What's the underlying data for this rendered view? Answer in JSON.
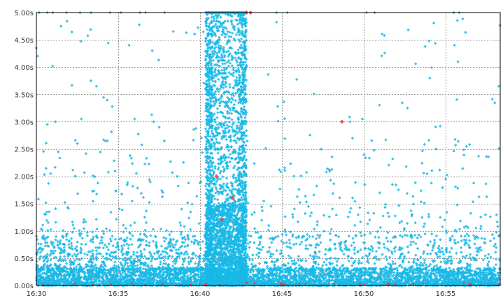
{
  "colors": {
    "background": "#ffffff",
    "plot_border": "#000000",
    "grid": "#999999",
    "response_point": "#19b8e6",
    "error_point": "#ff3333"
  },
  "chart_data": {
    "type": "scatter",
    "title": "",
    "xlabel": "",
    "ylabel": "",
    "grid": true,
    "legend": "none",
    "xlim": [
      "16:30",
      "16:58:20"
    ],
    "ylim": [
      0,
      5
    ],
    "x_ticks": [
      "16:30",
      "16:35",
      "16:40",
      "16:45",
      "16:50",
      "16:55"
    ],
    "y_ticks": [
      "0.00s",
      "0.50s",
      "1.00s",
      "1.50s",
      "2.00s",
      "2.50s",
      "3.00s",
      "3.50s",
      "4.00s",
      "4.50s",
      "5.00s"
    ],
    "series": [
      {
        "color": "#19b8e6",
        "description_points": [
          [
            "16:30:00",
            4.35
          ],
          [
            "16:30:10",
            0.3
          ],
          [
            "16:30:40",
            2.95
          ],
          [
            "16:31:10",
            3.0
          ],
          [
            "16:31:30",
            4.75
          ],
          [
            "16:32:30",
            2.6
          ],
          [
            "16:32:45",
            3.05
          ],
          [
            "16:33:20",
            3.75
          ],
          [
            "16:33:40",
            3.65
          ],
          [
            "16:34:20",
            2.65
          ],
          [
            "16:35:40",
            4.4
          ],
          [
            "16:36:00",
            3.05
          ],
          [
            "16:37:10",
            3.0
          ],
          [
            "16:37:30",
            2.9
          ],
          [
            "16:41:20",
            1.7
          ],
          [
            "16:41:45",
            1.6
          ],
          [
            "16:43:10",
            1.3
          ],
          [
            "16:44:20",
            1.45
          ],
          [
            "16:44:45",
            3.28
          ],
          [
            "16:45:40",
            1.25
          ],
          [
            "16:49:10",
            3.0
          ],
          [
            "16:49:55",
            3.05
          ],
          [
            "16:52:40",
            3.25
          ],
          [
            "16:54:00",
            4.48
          ],
          [
            "16:54:25",
            2.5
          ],
          [
            "16:54:40",
            2.92
          ],
          [
            "16:55:00",
            1.95
          ],
          [
            "16:55:45",
            4.1
          ],
          [
            "16:58:15",
            3.65
          ]
        ]
      },
      {
        "color": "#ff3333",
        "description_points": [
          [
            "16:42:50",
            5.0
          ],
          [
            "16:43:05",
            5.0
          ],
          [
            "16:48:40",
            3.0
          ],
          [
            "16:41:00",
            2.0
          ],
          [
            "16:41:20",
            1.2
          ],
          [
            "16:42:00",
            1.6
          ],
          [
            "16:40:20",
            0.02
          ],
          [
            "16:45:00",
            0.02
          ],
          [
            "16:51:30",
            0.02
          ],
          [
            "16:56:30",
            0.02
          ]
        ]
      }
    ]
  }
}
